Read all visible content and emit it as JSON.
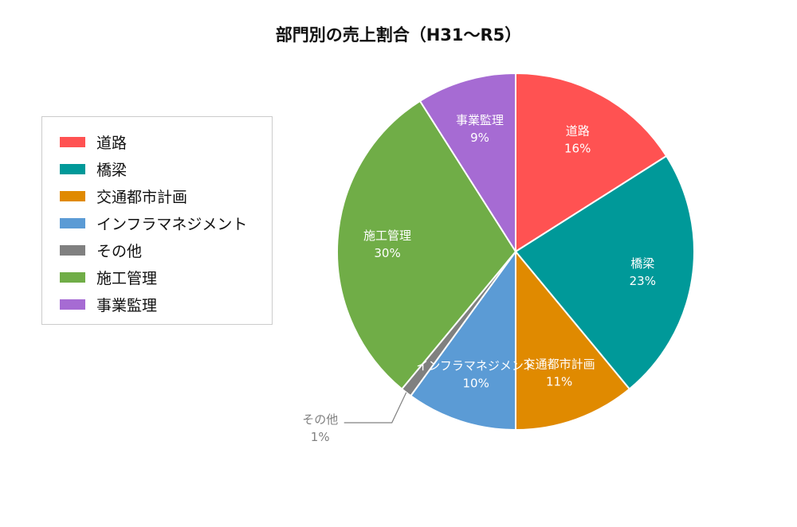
{
  "chart_data": {
    "type": "pie",
    "title": "部門別の売上割合（H31～R5）",
    "legend_position": "left",
    "slices": [
      {
        "label": "道路",
        "value": 16,
        "value_label": "16%",
        "color": "#ff5252"
      },
      {
        "label": "橋梁",
        "value": 23,
        "value_label": "23%",
        "color": "#009999"
      },
      {
        "label": "交通都市計画",
        "value": 11,
        "value_label": "11%",
        "color": "#e08a00"
      },
      {
        "label": "インフラマネジメント",
        "value": 10,
        "value_label": "10%",
        "color": "#5b9bd5"
      },
      {
        "label": "その他",
        "value": 1,
        "value_label": "1%",
        "color": "#808080"
      },
      {
        "label": "施工管理",
        "value": 30,
        "value_label": "30%",
        "color": "#70ad47"
      },
      {
        "label": "事業監理",
        "value": 9,
        "value_label": "9%",
        "color": "#a66bd3"
      }
    ]
  }
}
